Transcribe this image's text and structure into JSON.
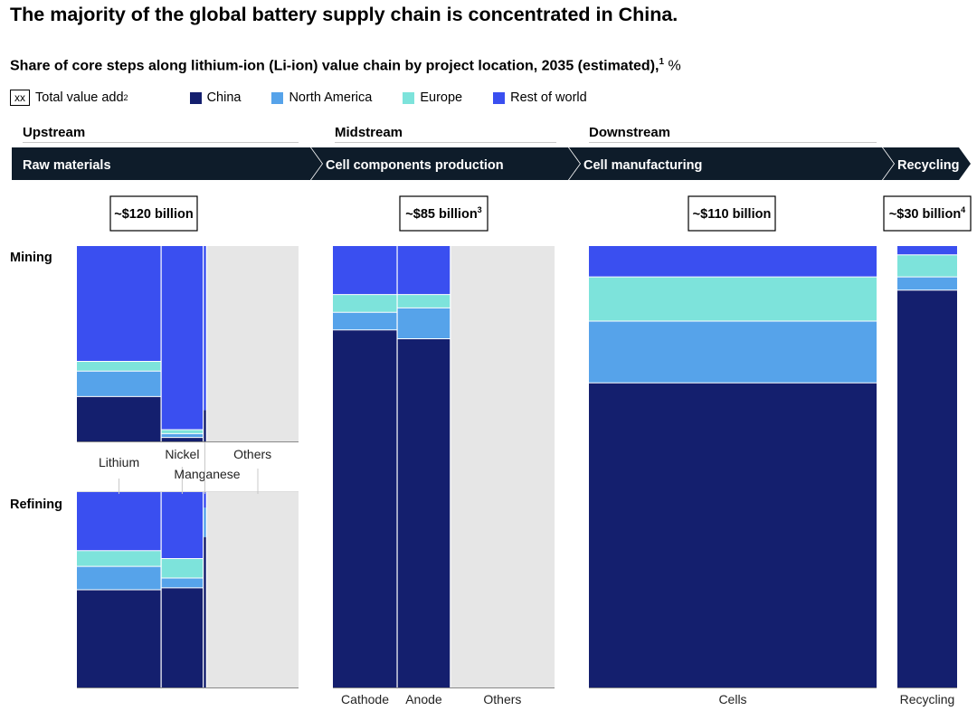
{
  "title": "The majority of the global battery supply chain is concentrated in China.",
  "subtitle": "Share of core steps along lithium-ion (Li-ion) value chain by project location, 2035 (estimated),",
  "subtitle_footnote": "1",
  "subtitle_unit": "%",
  "legend": {
    "total_box": "xx",
    "total_label": "Total value add",
    "total_footnote": "2",
    "items": [
      {
        "label": "China",
        "color": "#141f6e"
      },
      {
        "label": "North America",
        "color": "#56a3ea"
      },
      {
        "label": "Europe",
        "color": "#7de3db"
      },
      {
        "label": "Rest of world",
        "color": "#3a4ff0"
      }
    ]
  },
  "colors": {
    "other_bg": "#e6e6e6",
    "arrow_bg": "#0e1c2a",
    "separator": "#ffffff"
  },
  "stages": {
    "upstream": "Upstream",
    "midstream": "Midstream",
    "downstream": "Downstream"
  },
  "chevrons": [
    {
      "label": "Raw materials"
    },
    {
      "label": "Cell components production"
    },
    {
      "label": "Cell manufacturing"
    },
    {
      "label": "Recycling"
    }
  ],
  "totals": [
    {
      "label": "~$120 billion",
      "footnote": ""
    },
    {
      "label": "~$85 billion",
      "footnote": "3"
    },
    {
      "label": "~$110 billion",
      "footnote": ""
    },
    {
      "label": "~$30 billion",
      "footnote": "4"
    }
  ],
  "row_labels": {
    "mining": "Mining",
    "refining": "Refining"
  },
  "chart_data": {
    "type": "marimekko",
    "title": "The majority of the global battery supply chain is concentrated in China.",
    "series_order": [
      "China",
      "North America",
      "Europe",
      "Rest of world"
    ],
    "panels": [
      {
        "name": "Mining",
        "categories": [
          {
            "label": "Lithium",
            "width": 38,
            "values": {
              "China": 23,
              "North America": 13,
              "Europe": 5,
              "Rest of world": 59
            }
          },
          {
            "label": "Nickel",
            "width": 19,
            "values": {
              "China": 2,
              "North America": 2,
              "Europe": 2,
              "Rest of world": 94
            }
          },
          {
            "label": "Manganese",
            "width": 1.5,
            "values": {
              "China": 16,
              "North America": 0,
              "Europe": 0,
              "Rest of world": 84
            }
          },
          {
            "label": "Others",
            "width": 41.5,
            "values": null
          }
        ]
      },
      {
        "name": "Refining",
        "categories": [
          {
            "label": "Lithium",
            "width": 38,
            "values": {
              "China": 50,
              "North America": 12,
              "Europe": 8,
              "Rest of world": 30
            }
          },
          {
            "label": "Nickel",
            "width": 19,
            "values": {
              "China": 51,
              "North America": 5,
              "Europe": 10,
              "Rest of world": 34
            }
          },
          {
            "label": "Manganese",
            "width": 1.5,
            "values": {
              "China": 77,
              "North America": 15,
              "Europe": 0,
              "Rest of world": 8
            }
          },
          {
            "label": "Others",
            "width": 41.5,
            "values": null
          }
        ]
      },
      {
        "name": "Cell components production",
        "categories": [
          {
            "label": "Cathode",
            "width": 29,
            "values": {
              "China": 81,
              "North America": 4,
              "Europe": 4,
              "Rest of world": 11
            }
          },
          {
            "label": "Anode",
            "width": 24,
            "values": {
              "China": 79,
              "North America": 7,
              "Europe": 3,
              "Rest of world": 11
            }
          },
          {
            "label": "Others",
            "width": 47,
            "values": null
          }
        ]
      },
      {
        "name": "Cell manufacturing",
        "categories": [
          {
            "label": "Cells",
            "width": 100,
            "values": {
              "China": 69,
              "North America": 14,
              "Europe": 10,
              "Rest of world": 7
            }
          }
        ]
      },
      {
        "name": "Recycling",
        "categories": [
          {
            "label": "Recycling",
            "width": 100,
            "values": {
              "China": 90,
              "North America": 3,
              "Europe": 5,
              "Rest of world": 2
            }
          }
        ]
      }
    ]
  }
}
